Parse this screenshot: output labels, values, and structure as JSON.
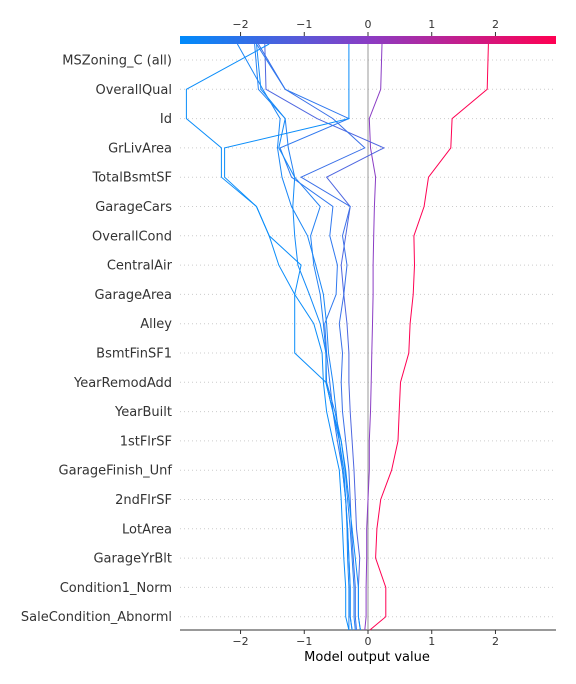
{
  "chart_data": {
    "type": "line",
    "subtype": "shap-decision-plot",
    "xlabel": "Model output value",
    "xlim": [
      -2.95,
      2.95
    ],
    "xticks": [
      -2,
      -1,
      0,
      1,
      2
    ],
    "base_value": 0,
    "grid": "dotted-horizontal",
    "colorbar": {
      "position": "top",
      "low_color": "#008bfb",
      "mid_color": "#8a3cc4",
      "high_color": "#ff0052"
    },
    "features": [
      "MSZoning_C (all)",
      "OverallQual",
      "Id",
      "GrLivArea",
      "TotalBsmtSF",
      "GarageCars",
      "OverallCond",
      "CentralAir",
      "GarageArea",
      "Alley",
      "BsmtFinSF1",
      "YearRemodAdd",
      "YearBuilt",
      "1stFlrSF",
      "GarageFinish_Unf",
      "2ndFlrSF",
      "LotArea",
      "GarageYrBlt",
      "Condition1_Norm",
      "SaleCondition_Abnorml"
    ],
    "series_note": "cumulative output at each level, listed from bottom (base) to top (final prediction)",
    "series": [
      {
        "color": "#ff0052",
        "values": [
          0.03,
          0.28,
          0.28,
          0.12,
          0.14,
          0.2,
          0.37,
          0.47,
          0.49,
          0.51,
          0.64,
          0.66,
          0.71,
          0.73,
          0.72,
          0.88,
          0.95,
          1.3,
          1.32,
          1.87,
          1.89
        ]
      },
      {
        "color": "#8a3cc4",
        "values": [
          -0.05,
          -0.03,
          -0.03,
          -0.02,
          -0.02,
          0.0,
          0.02,
          0.02,
          0.04,
          0.05,
          0.06,
          0.07,
          0.08,
          0.08,
          0.09,
          0.1,
          0.12,
          0.04,
          0.02,
          0.2,
          0.22
        ]
      },
      {
        "color": "#4f67e0",
        "values": [
          -0.12,
          -0.15,
          -0.15,
          -0.13,
          -0.18,
          -0.2,
          -0.22,
          -0.25,
          -0.28,
          -0.3,
          -0.3,
          -0.33,
          -0.38,
          -0.42,
          -0.35,
          -0.28,
          -0.65,
          0.25,
          -0.8,
          -1.6,
          -1.62
        ]
      },
      {
        "color": "#3a70e8",
        "values": [
          -0.18,
          -0.2,
          -0.2,
          -0.23,
          -0.26,
          -0.28,
          -0.3,
          -0.35,
          -0.4,
          -0.42,
          -0.4,
          -0.45,
          -0.38,
          -0.33,
          -0.4,
          -0.28,
          -1.05,
          -0.05,
          -0.55,
          -1.3,
          -1.72
        ]
      },
      {
        "color": "#2f78ef",
        "values": [
          -0.25,
          -0.28,
          -0.28,
          -0.3,
          -0.32,
          -0.35,
          -0.4,
          -0.48,
          -0.55,
          -0.6,
          -0.65,
          -0.68,
          -0.5,
          -0.48,
          -0.6,
          -0.55,
          -1.2,
          -1.38,
          -0.3,
          -1.3,
          -1.75
        ]
      },
      {
        "color": "#2481f3",
        "values": [
          -0.2,
          -0.22,
          -0.22,
          -0.25,
          -0.28,
          -0.32,
          -0.36,
          -0.42,
          -0.52,
          -0.65,
          -0.66,
          -0.7,
          -0.75,
          -0.85,
          -0.9,
          -0.75,
          -1.15,
          -1.25,
          -1.3,
          -1.72,
          -1.78
        ]
      },
      {
        "color": "#1a86f6",
        "values": [
          -0.3,
          -0.3,
          -0.3,
          -0.32,
          -0.33,
          -0.35,
          -0.4,
          -0.45,
          -0.5,
          -0.55,
          -0.62,
          -0.65,
          -0.7,
          -0.82,
          -0.95,
          -1.2,
          -1.35,
          -1.42,
          -1.38,
          -1.65,
          -2.05
        ]
      },
      {
        "color": "#138af8",
        "values": [
          -0.25,
          -0.28,
          -0.28,
          -0.3,
          -0.32,
          -0.35,
          -0.38,
          -0.45,
          -0.55,
          -0.66,
          -0.66,
          -0.75,
          -0.92,
          -1.1,
          -1.15,
          -1.18,
          -1.15,
          -1.4,
          -1.3,
          -1.68,
          -1.75
        ]
      },
      {
        "color": "#0b8dfa",
        "values": [
          -0.12,
          -0.15,
          -0.15,
          -0.2,
          -0.25,
          -0.3,
          -0.35,
          -0.42,
          -0.55,
          -0.66,
          -1.15,
          -1.15,
          -1.15,
          -1.05,
          -1.55,
          -1.75,
          -2.3,
          -2.3,
          -2.85,
          -2.85,
          -1.55
        ]
      },
      {
        "color": "#0a8dfa",
        "values": [
          -0.3,
          -0.35,
          -0.35,
          -0.38,
          -0.4,
          -0.42,
          -0.45,
          -0.55,
          -0.65,
          -0.7,
          -0.72,
          -0.85,
          -1.15,
          -1.4,
          -1.55,
          -1.75,
          -2.25,
          -2.25,
          -0.3,
          -0.3,
          -0.3
        ]
      }
    ]
  }
}
